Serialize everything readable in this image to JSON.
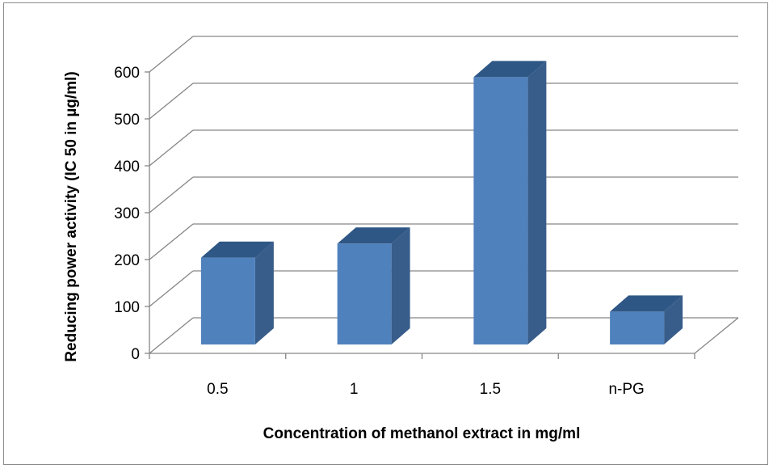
{
  "chart_data": {
    "type": "bar",
    "categories": [
      "0.5",
      "1",
      "1.5",
      "n-PG"
    ],
    "values": [
      185,
      215,
      570,
      70
    ],
    "xlabel": "Concentration of methanol extract in mg/ml",
    "ylabel": "Reducing power activity (IC 50 in µg/ml)",
    "ylim": [
      0,
      600
    ],
    "yticks": [
      "0",
      "100",
      "200",
      "300",
      "400",
      "500",
      "600"
    ],
    "grid": true,
    "legend": "none",
    "colors": {
      "bar_front": "#4f81bd",
      "bar_side": "#385d8a",
      "bar_top": "#2f5785",
      "grid": "#868686"
    }
  }
}
